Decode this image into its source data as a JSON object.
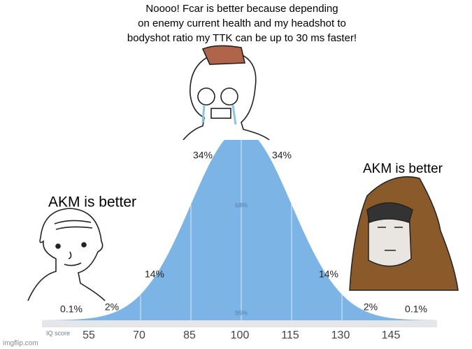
{
  "top_text": {
    "lines": [
      "Noooo! Fcar is better because depending",
      "on enemy current health and my headshot to",
      "bodyshot ratio my TTK can be up to 30 ms faster!"
    ]
  },
  "left_text": "AKM is better",
  "right_text": "AKM is better",
  "curve": {
    "percent_labels": [
      "0.1%",
      "2%",
      "14%",
      "34%",
      "34%",
      "14%",
      "2%",
      "0.1%"
    ],
    "inner_labels": [
      "68%",
      "95%"
    ],
    "axis_label": "IQ score",
    "axis_ticks": [
      55,
      70,
      85,
      100,
      115,
      130,
      145
    ]
  },
  "watermark": "imgflip.com"
}
